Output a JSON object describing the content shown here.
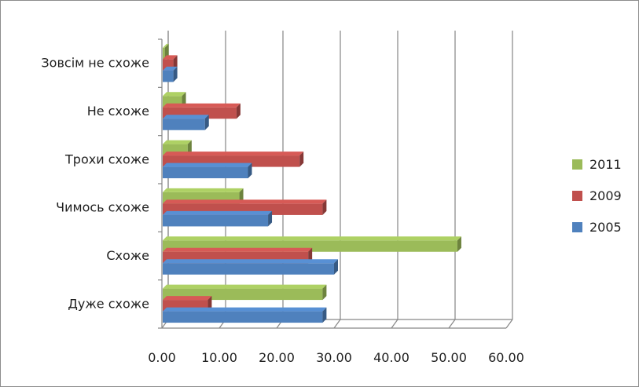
{
  "chart_data": {
    "type": "bar",
    "orientation": "horizontal",
    "style": "3d-clustered",
    "categories": [
      "Зовсім не схоже",
      "Не схоже",
      "Трохи схоже",
      "Чимось схоже",
      "Схоже",
      "Дуже схоже"
    ],
    "series": [
      {
        "name": "2011",
        "color": "#9bbb59",
        "values": [
          0.5,
          3.5,
          4.5,
          13.5,
          51.5,
          28.0
        ]
      },
      {
        "name": "2009",
        "color": "#c0504d",
        "values": [
          2.0,
          13.0,
          24.0,
          28.0,
          25.5,
          8.0
        ]
      },
      {
        "name": "2005",
        "color": "#4f81bd",
        "values": [
          2.0,
          7.5,
          15.0,
          18.5,
          30.0,
          28.0
        ]
      }
    ],
    "xticks": [
      "0.00",
      "10.00",
      "20.00",
      "30.00",
      "40.00",
      "50.00",
      "60.00"
    ],
    "xlim": [
      0,
      60
    ],
    "grid": true,
    "legend": "right",
    "title": "",
    "xlabel": "",
    "ylabel": ""
  }
}
